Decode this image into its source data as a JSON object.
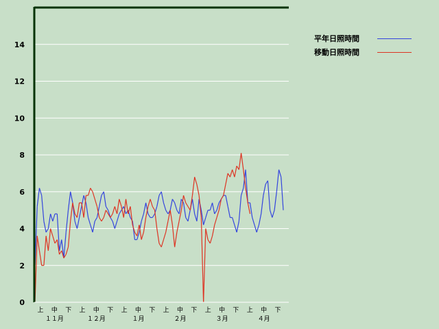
{
  "chart_data": {
    "type": "line",
    "ylim": [
      0,
      16
    ],
    "y_ticks": [
      "0",
      "2",
      "4",
      "6",
      "8",
      "10",
      "12",
      "14"
    ],
    "grid": true,
    "legend_position": "top-right",
    "x_period_labels": [
      "上",
      "中",
      "下",
      "上",
      "中",
      "下",
      "上",
      "中",
      "下",
      "上",
      "中",
      "下",
      "上",
      "中",
      "下",
      "上",
      "中",
      "下"
    ],
    "x_month_labels": [
      "１１月",
      "１２月",
      "１月",
      "２月",
      "３月",
      "４月"
    ],
    "series": [
      {
        "name": "平年日照時間",
        "color": "#3344dd",
        "values": [
          2.0,
          5.2,
          6.2,
          5.8,
          4.4,
          3.8,
          4.0,
          4.8,
          4.4,
          4.8,
          4.8,
          2.8,
          3.4,
          2.4,
          3.8,
          5.0,
          6.0,
          5.4,
          4.4,
          4.0,
          4.6,
          5.2,
          5.8,
          5.4,
          4.6,
          4.2,
          3.8,
          4.4,
          4.6,
          5.2,
          5.8,
          6.0,
          5.2,
          5.0,
          4.6,
          4.4,
          4.0,
          4.4,
          4.8,
          5.0,
          5.2,
          4.8,
          5.0,
          4.6,
          4.4,
          3.4,
          3.4,
          3.8,
          4.4,
          4.8,
          5.4,
          4.8,
          4.6,
          4.6,
          4.8,
          5.2,
          5.8,
          6.0,
          5.4,
          5.0,
          4.8,
          5.0,
          5.6,
          5.4,
          5.0,
          4.8,
          5.6,
          5.4,
          4.6,
          4.4,
          5.0,
          5.6,
          4.8,
          4.4,
          5.6,
          5.0,
          4.2,
          4.6,
          5.0,
          5.0,
          5.4,
          4.8,
          5.0,
          5.4,
          5.6,
          5.8,
          5.8,
          5.2,
          4.6,
          4.6,
          4.2,
          3.8,
          4.4,
          5.8,
          6.2,
          7.2,
          5.4,
          5.4,
          4.6,
          4.2,
          3.8,
          4.2,
          4.8,
          5.8,
          6.4,
          6.6,
          5.0,
          4.6,
          5.0,
          6.0,
          7.2,
          6.8,
          5.0
        ]
      },
      {
        "name": "移動日照時間",
        "color": "#dd3322",
        "values": [
          0.0,
          3.6,
          2.8,
          2.0,
          2.0,
          3.6,
          2.8,
          4.0,
          3.6,
          3.2,
          3.4,
          2.6,
          2.8,
          2.4,
          2.6,
          3.0,
          4.4,
          5.4,
          4.8,
          4.6,
          5.4,
          5.4,
          4.6,
          5.8,
          5.8,
          6.2,
          6.0,
          5.6,
          5.2,
          4.6,
          4.4,
          4.6,
          5.0,
          4.8,
          4.6,
          4.8,
          5.2,
          4.8,
          5.6,
          5.2,
          4.6,
          5.6,
          4.8,
          5.2,
          4.2,
          3.8,
          3.6,
          4.2,
          3.4,
          3.8,
          4.6,
          5.2,
          5.6,
          5.2,
          5.0,
          4.0,
          3.2,
          3.0,
          3.4,
          3.8,
          4.4,
          5.0,
          4.2,
          3.0,
          3.8,
          4.4,
          5.0,
          5.8,
          5.4,
          5.2,
          5.0,
          5.8,
          6.8,
          6.4,
          5.8,
          4.6,
          0.0,
          4.0,
          3.4,
          3.2,
          3.6,
          4.2,
          4.6,
          5.0,
          5.6,
          5.8,
          6.4,
          7.0,
          6.8,
          7.2,
          6.8,
          7.4,
          7.2,
          8.1,
          7.2,
          6.2,
          5.4,
          4.8
        ]
      }
    ]
  }
}
